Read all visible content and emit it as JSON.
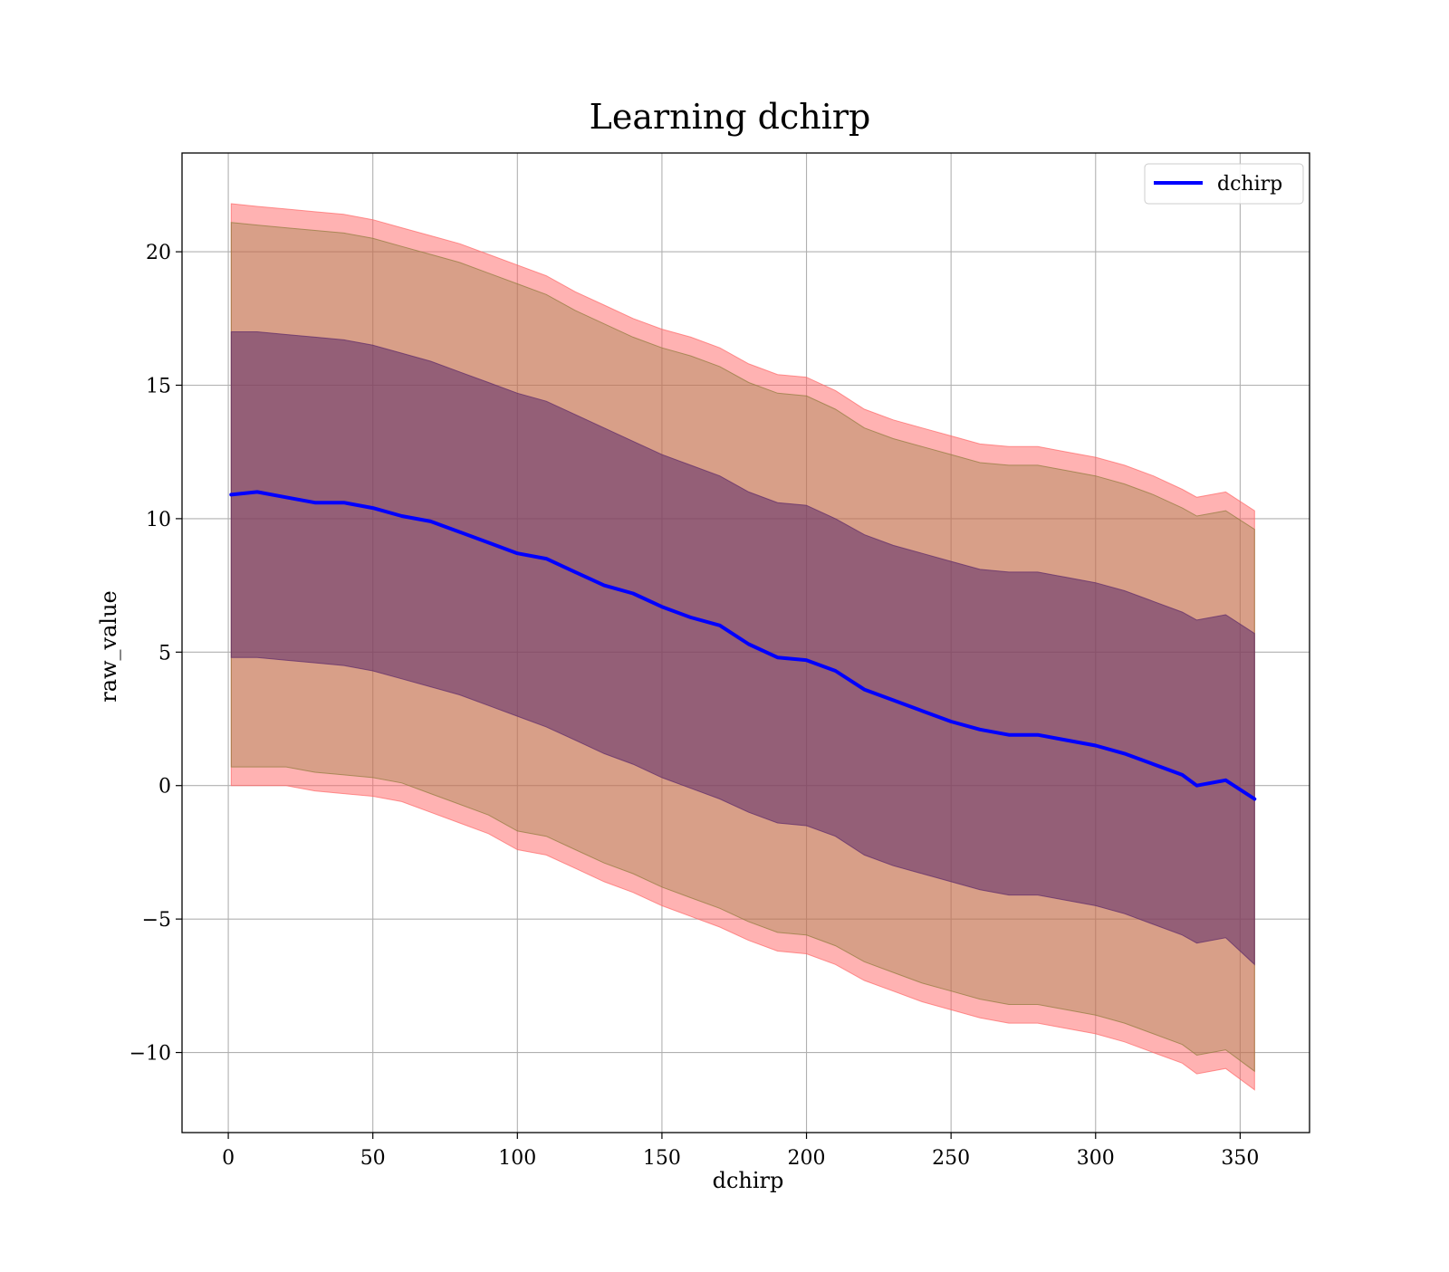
{
  "chart_data": {
    "type": "line",
    "title": "Learning dchirp",
    "xlabel": "dchirp",
    "ylabel": "raw_value",
    "xlim": [
      -16,
      374
    ],
    "ylim": [
      -13,
      23.7
    ],
    "xticks": [
      0,
      50,
      100,
      150,
      200,
      250,
      300,
      350
    ],
    "xtick_labels": [
      "0",
      "50",
      "100",
      "150",
      "200",
      "250",
      "300",
      "350"
    ],
    "yticks": [
      -10,
      -5,
      0,
      5,
      10,
      15,
      20
    ],
    "ytick_labels": [
      "−10",
      "−5",
      "0",
      "5",
      "10",
      "15",
      "20"
    ],
    "grid": true,
    "legend_position": "top-right",
    "colors": {
      "line": "#0000ff",
      "outer_band": "#ff6666",
      "middle_band": "#8f7a3a",
      "inner_band": "#5c2a6a"
    },
    "series": [
      {
        "name": "dchirp",
        "x": [
          1,
          10,
          20,
          30,
          40,
          50,
          60,
          70,
          80,
          90,
          100,
          110,
          120,
          130,
          140,
          150,
          160,
          170,
          180,
          190,
          200,
          210,
          220,
          230,
          240,
          250,
          260,
          270,
          280,
          290,
          300,
          310,
          320,
          330,
          335,
          345,
          355
        ],
        "y": [
          10.9,
          11.0,
          10.8,
          10.6,
          10.6,
          10.4,
          10.1,
          9.9,
          9.5,
          9.1,
          8.7,
          8.5,
          8.0,
          7.5,
          7.2,
          6.7,
          6.3,
          6.0,
          5.3,
          4.8,
          4.7,
          4.3,
          3.6,
          3.2,
          2.8,
          2.4,
          2.1,
          1.9,
          1.9,
          1.7,
          1.5,
          1.2,
          0.8,
          0.4,
          0.0,
          0.2,
          -0.5
        ]
      }
    ],
    "bands": [
      {
        "level": "outer",
        "upper": [
          21.8,
          21.7,
          21.6,
          21.5,
          21.4,
          21.2,
          20.9,
          20.6,
          20.3,
          19.9,
          19.5,
          19.1,
          18.5,
          18.0,
          17.5,
          17.1,
          16.8,
          16.4,
          15.8,
          15.4,
          15.3,
          14.8,
          14.1,
          13.7,
          13.4,
          13.1,
          12.8,
          12.7,
          12.7,
          12.5,
          12.3,
          12.0,
          11.6,
          11.1,
          10.8,
          11.0,
          10.3
        ],
        "lower": [
          0.0,
          0.0,
          0.0,
          -0.2,
          -0.3,
          -0.4,
          -0.6,
          -1.0,
          -1.4,
          -1.8,
          -2.4,
          -2.6,
          -3.1,
          -3.6,
          -4.0,
          -4.5,
          -4.9,
          -5.3,
          -5.8,
          -6.2,
          -6.3,
          -6.7,
          -7.3,
          -7.7,
          -8.1,
          -8.4,
          -8.7,
          -8.9,
          -8.9,
          -9.1,
          -9.3,
          -9.6,
          -10.0,
          -10.4,
          -10.8,
          -10.6,
          -11.4
        ]
      },
      {
        "level": "middle",
        "upper": [
          21.1,
          21.0,
          20.9,
          20.8,
          20.7,
          20.5,
          20.2,
          19.9,
          19.6,
          19.2,
          18.8,
          18.4,
          17.8,
          17.3,
          16.8,
          16.4,
          16.1,
          15.7,
          15.1,
          14.7,
          14.6,
          14.1,
          13.4,
          13.0,
          12.7,
          12.4,
          12.1,
          12.0,
          12.0,
          11.8,
          11.6,
          11.3,
          10.9,
          10.4,
          10.1,
          10.3,
          9.6
        ],
        "lower": [
          0.7,
          0.7,
          0.7,
          0.5,
          0.4,
          0.3,
          0.1,
          -0.3,
          -0.7,
          -1.1,
          -1.7,
          -1.9,
          -2.4,
          -2.9,
          -3.3,
          -3.8,
          -4.2,
          -4.6,
          -5.1,
          -5.5,
          -5.6,
          -6.0,
          -6.6,
          -7.0,
          -7.4,
          -7.7,
          -8.0,
          -8.2,
          -8.2,
          -8.4,
          -8.6,
          -8.9,
          -9.3,
          -9.7,
          -10.1,
          -9.9,
          -10.7
        ]
      },
      {
        "level": "inner",
        "upper": [
          17.0,
          17.0,
          16.9,
          16.8,
          16.7,
          16.5,
          16.2,
          15.9,
          15.5,
          15.1,
          14.7,
          14.4,
          13.9,
          13.4,
          12.9,
          12.4,
          12.0,
          11.6,
          11.0,
          10.6,
          10.5,
          10.0,
          9.4,
          9.0,
          8.7,
          8.4,
          8.1,
          8.0,
          8.0,
          7.8,
          7.6,
          7.3,
          6.9,
          6.5,
          6.2,
          6.4,
          5.7
        ],
        "lower": [
          4.8,
          4.8,
          4.7,
          4.6,
          4.5,
          4.3,
          4.0,
          3.7,
          3.4,
          3.0,
          2.6,
          2.2,
          1.7,
          1.2,
          0.8,
          0.3,
          -0.1,
          -0.5,
          -1.0,
          -1.4,
          -1.5,
          -1.9,
          -2.6,
          -3.0,
          -3.3,
          -3.6,
          -3.9,
          -4.1,
          -4.1,
          -4.3,
          -4.5,
          -4.8,
          -5.2,
          -5.6,
          -5.9,
          -5.7,
          -6.7
        ]
      }
    ]
  }
}
